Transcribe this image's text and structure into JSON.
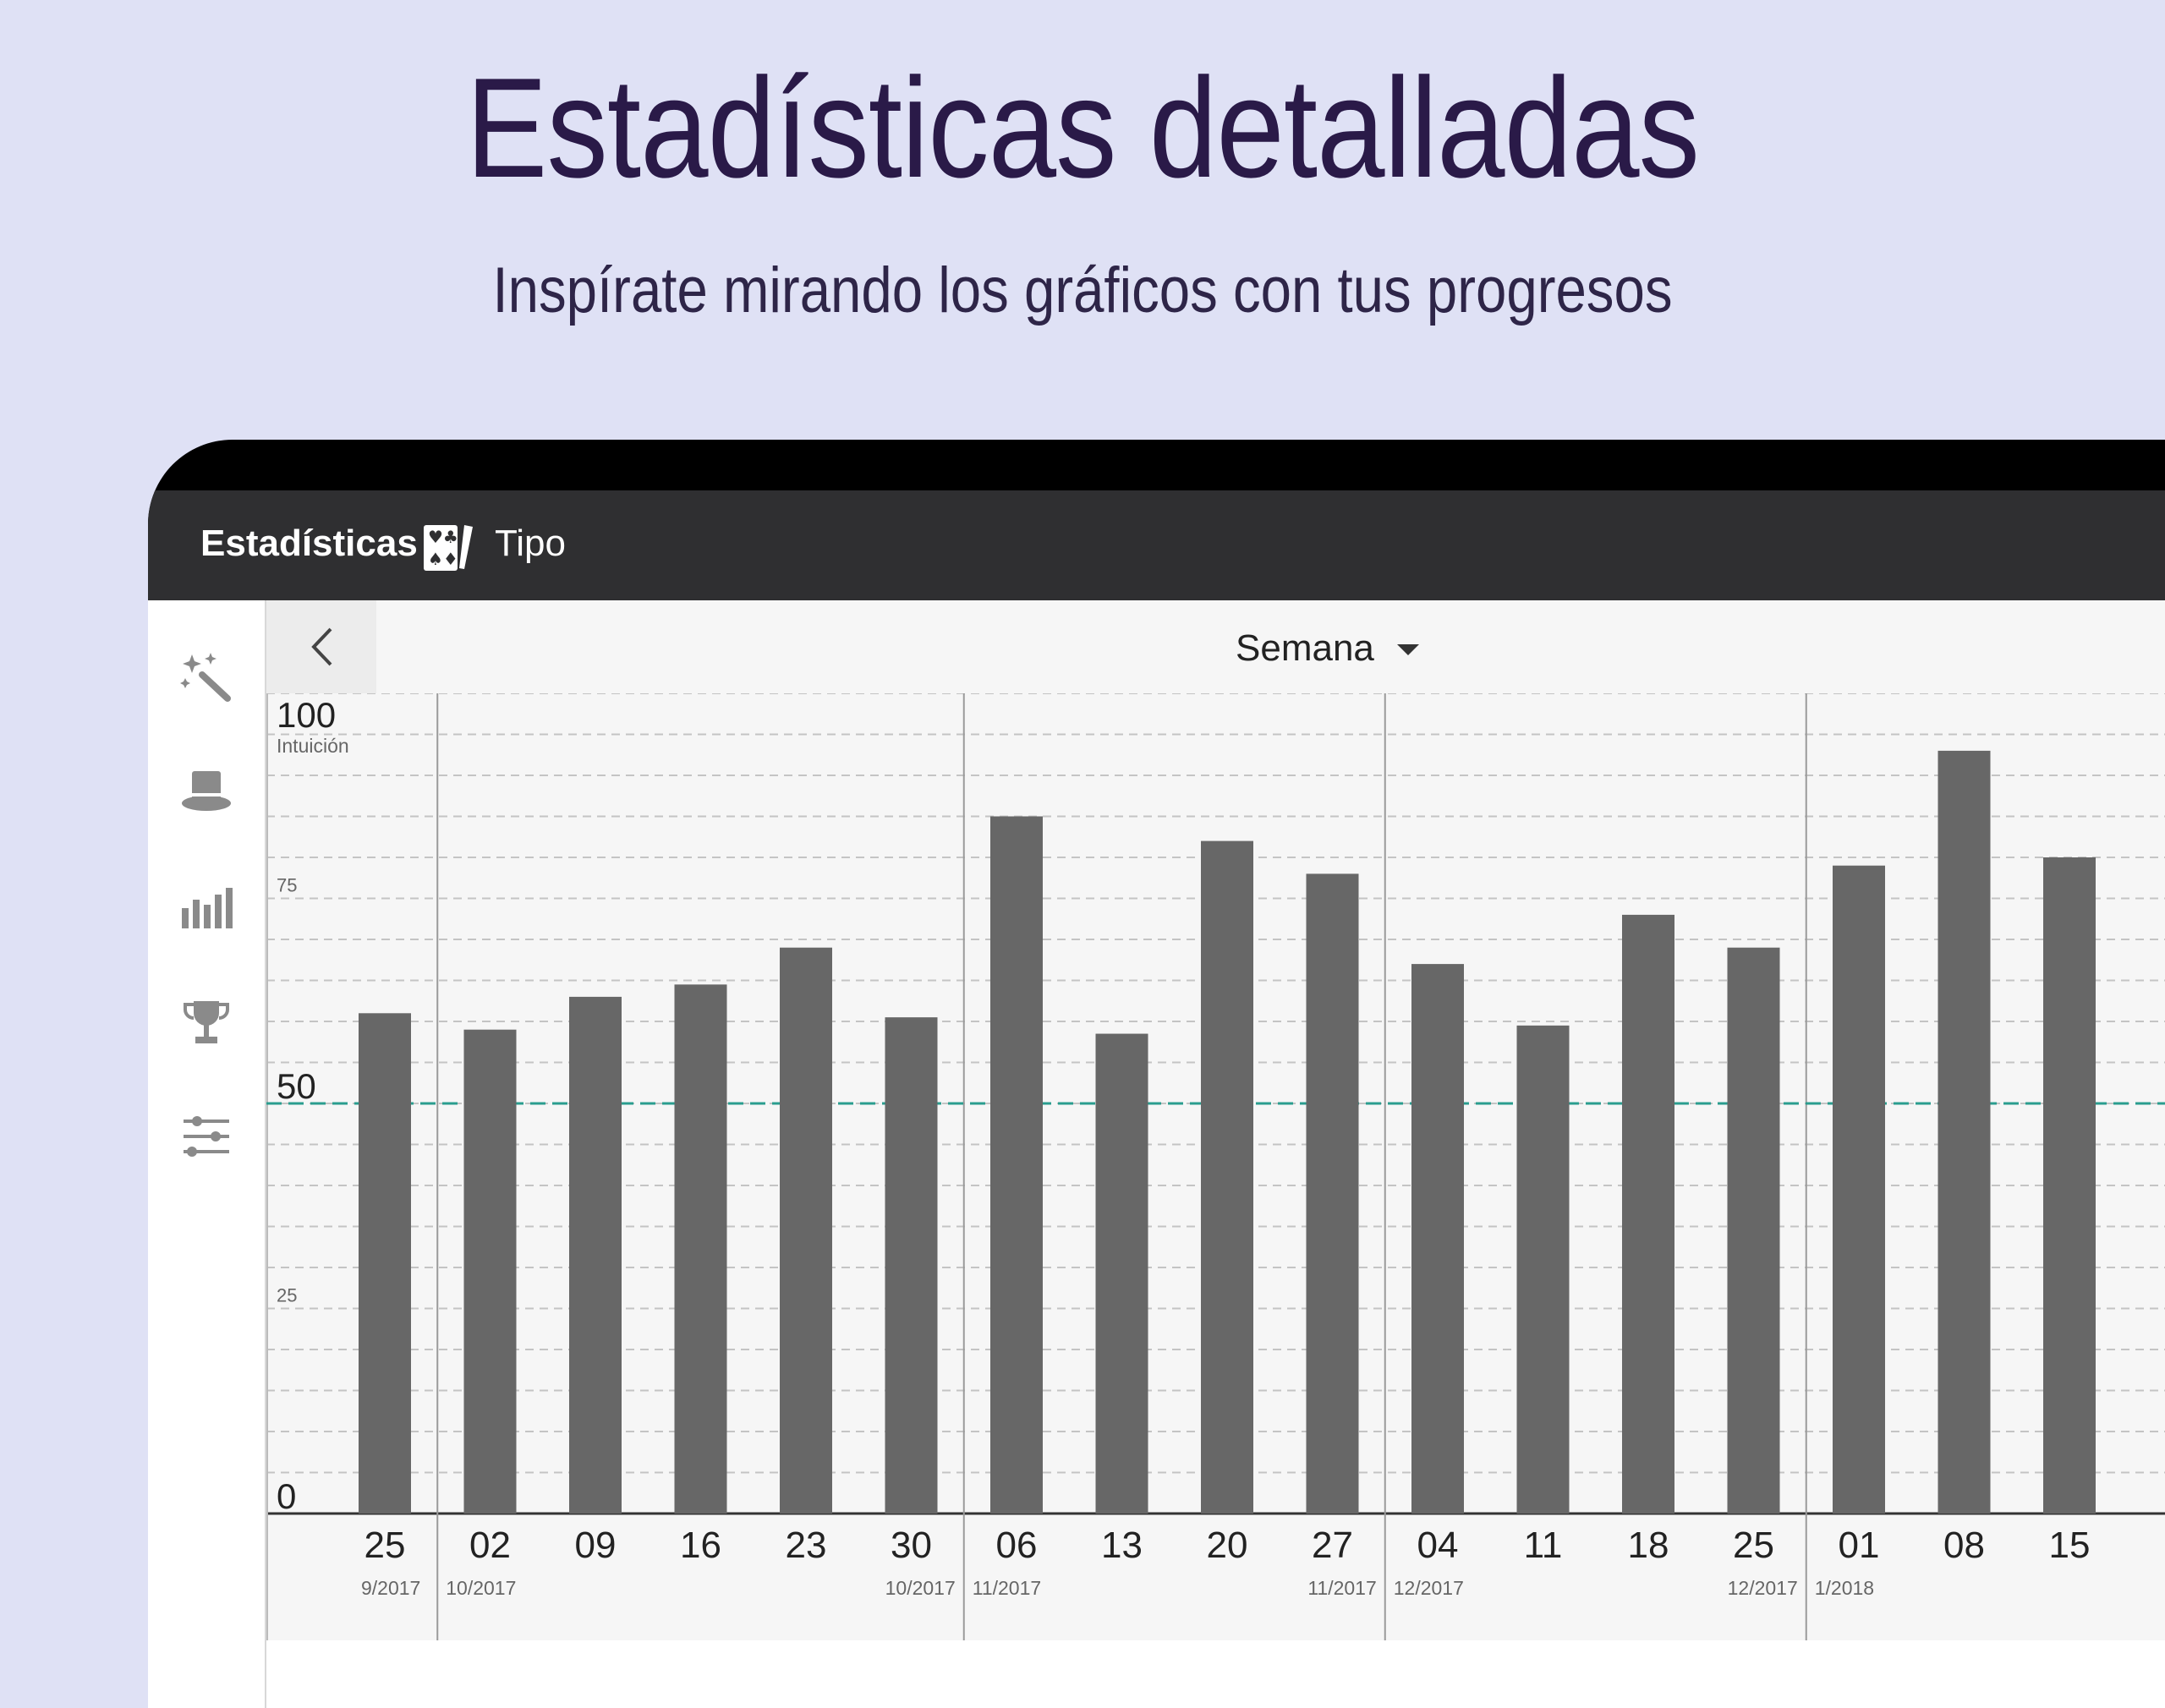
{
  "headline": "Estadísticas detalladas",
  "subline": "Inspírate mirando los gráficos con tus progresos",
  "appbar": {
    "title": "Estadísticas",
    "type_label": "Tipo",
    "type_icon": "cards-icon"
  },
  "sidebar": {
    "items": [
      {
        "name": "magic-wand-icon"
      },
      {
        "name": "top-hat-icon"
      },
      {
        "name": "bar-chart-icon"
      },
      {
        "name": "trophy-icon"
      },
      {
        "name": "sliders-icon"
      }
    ]
  },
  "navigation": {
    "period_label": "Semana",
    "prev_icon": "chevron-left-icon",
    "next_icon": "chevron-right-icon"
  },
  "chart_data": {
    "type": "bar",
    "ylabel": "Intuición",
    "ylim": [
      0,
      100
    ],
    "major_ticks": [
      "100",
      "50",
      "0"
    ],
    "minor_ticks": [
      "75",
      "25"
    ],
    "reference_line": 50,
    "reference_color": "#2a9d8f",
    "bar_color": "#676767",
    "categories": [
      "25",
      "02",
      "09",
      "16",
      "23",
      "30",
      "06",
      "13",
      "20",
      "27",
      "04",
      "11",
      "18",
      "25",
      "01",
      "08",
      "15"
    ],
    "month_labels": [
      "9/2017",
      "10/2017",
      "",
      "",
      "",
      "10/2017",
      "11/2017",
      "",
      "",
      "11/2017",
      "12/2017",
      "",
      "",
      "12/2017",
      "1/2018",
      "",
      ""
    ],
    "month_boundaries_after_index": [
      0,
      5,
      9,
      13
    ],
    "values": [
      61,
      59,
      63,
      64.5,
      69,
      60.5,
      85,
      58.5,
      82,
      78,
      67,
      59.5,
      73,
      69,
      79,
      93,
      80
    ]
  }
}
